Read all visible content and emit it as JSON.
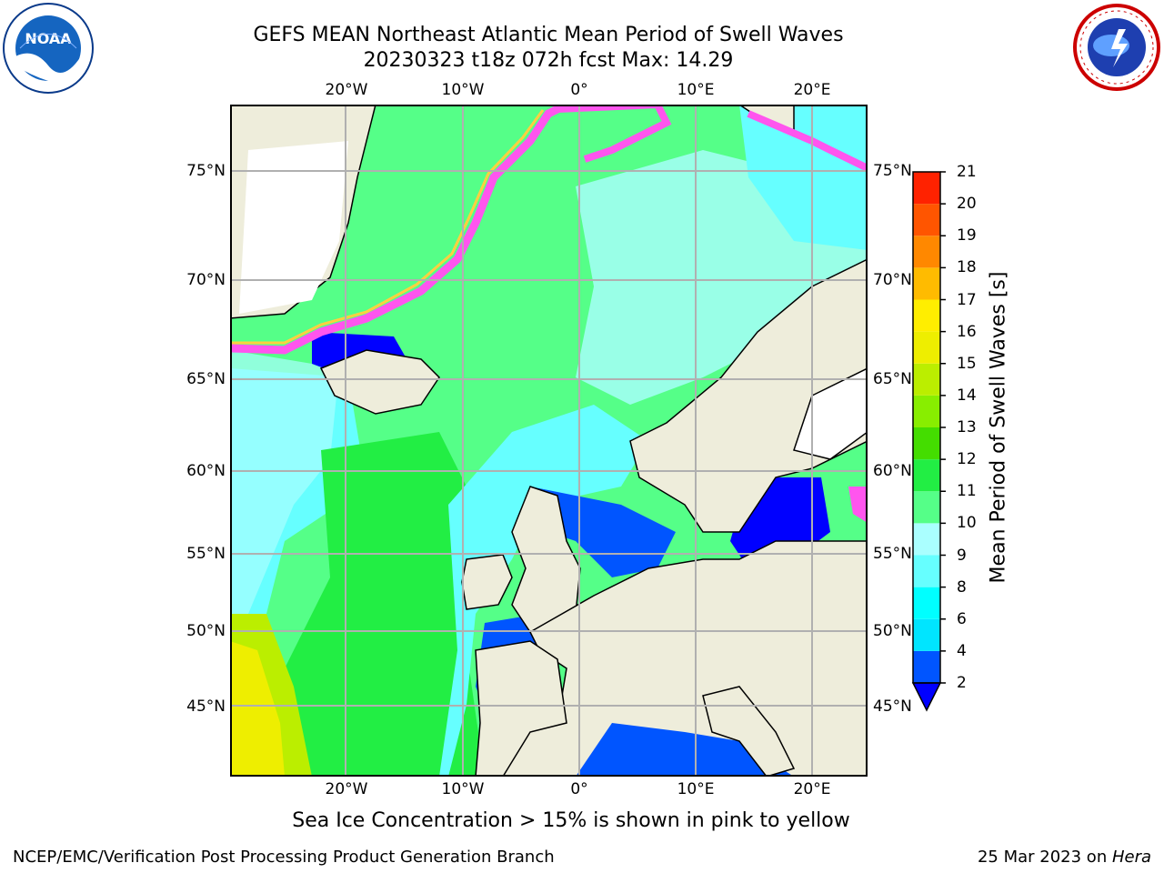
{
  "title": {
    "line1": "GEFS MEAN Northeast Atlantic Mean Period of Swell Waves",
    "line2": "20230323 t18z 072h fcst   Max: 14.29"
  },
  "map": {
    "projection": "Lambert-like regional map",
    "lon_labels": [
      "20°W",
      "10°W",
      "0°",
      "10°E",
      "20°E"
    ],
    "lat_labels": [
      "75°N",
      "70°N",
      "65°N",
      "60°N",
      "55°N",
      "50°N",
      "45°N"
    ],
    "land_color": "#EEEDDB",
    "gridline_color": "#B0B0B0"
  },
  "colorbar": {
    "label": "Mean Period of Swell Waves [s]",
    "ticks": [
      "2",
      "4",
      "6",
      "8",
      "9",
      "10",
      "11",
      "12",
      "13",
      "14",
      "15",
      "16",
      "17",
      "18",
      "19",
      "20",
      "21"
    ],
    "colors": [
      "#0055FF",
      "#00E5FF",
      "#00FFFF",
      "#66FFFF",
      "#AAFFFF",
      "#55FF88",
      "#22EE44",
      "#44DD00",
      "#88EE00",
      "#BBEE00",
      "#EEEE00",
      "#FFEE00",
      "#FFBB00",
      "#FF8800",
      "#FF5500",
      "#FF2200"
    ],
    "under_color": "#0000FF"
  },
  "note": "Sea Ice Concentration > 15% is shown in pink to yellow",
  "footer": {
    "left": "NCEP/EMC/Verification Post Processing Product Generation Branch",
    "right_prefix": "25 Mar 2023 on ",
    "right_host": "Hera"
  }
}
